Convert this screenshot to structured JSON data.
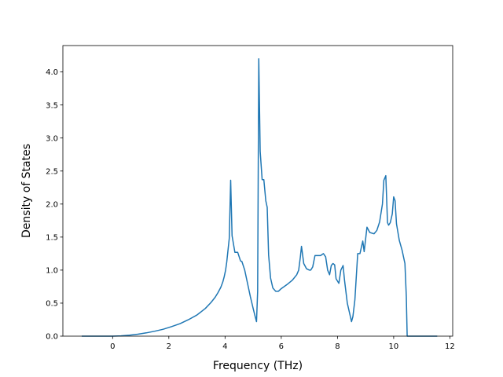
{
  "chart_data": {
    "type": "line",
    "title": "",
    "xlabel": "Frequency (THz)",
    "ylabel": "Density of States",
    "xlim": [
      -1.77,
      12.1
    ],
    "ylim": [
      0.0,
      4.4
    ],
    "xticks": [
      0,
      2,
      4,
      6,
      8,
      10,
      12
    ],
    "xtick_labels": [
      "0",
      "2",
      "4",
      "6",
      "8",
      "10",
      "12"
    ],
    "yticks": [
      0.0,
      0.5,
      1.0,
      1.5,
      2.0,
      2.5,
      3.0,
      3.5,
      4.0
    ],
    "ytick_labels": [
      "0.0",
      "0.5",
      "1.0",
      "1.5",
      "2.0",
      "2.5",
      "3.0",
      "3.5",
      "4.0"
    ],
    "grid": false,
    "legend": "none",
    "line_color": "#1f77b4",
    "series": [
      {
        "x": [
          -1.1,
          -0.5,
          0.0,
          0.3,
          0.6,
          0.9,
          1.2,
          1.5,
          1.8,
          2.1,
          2.4,
          2.7,
          3.0,
          3.3,
          3.5,
          3.65,
          3.75,
          3.85,
          3.92,
          3.97,
          4.02,
          4.06,
          4.1,
          4.15,
          4.2,
          4.25,
          4.35,
          4.45,
          4.55,
          4.6,
          4.7,
          4.8,
          4.9,
          5.0,
          5.07,
          5.12,
          5.16,
          5.2,
          5.25,
          5.32,
          5.38,
          5.45,
          5.5,
          5.55,
          5.62,
          5.7,
          5.8,
          5.9,
          6.0,
          6.2,
          6.4,
          6.55,
          6.62,
          6.68,
          6.72,
          6.8,
          6.9,
          7.0,
          7.05,
          7.12,
          7.2,
          7.3,
          7.4,
          7.5,
          7.58,
          7.65,
          7.72,
          7.78,
          7.84,
          7.9,
          7.95,
          8.05,
          8.12,
          8.2,
          8.25,
          8.35,
          8.5,
          8.55,
          8.62,
          8.72,
          8.8,
          8.9,
          8.95,
          9.05,
          9.15,
          9.3,
          9.4,
          9.5,
          9.6,
          9.65,
          9.72,
          9.78,
          9.82,
          9.88,
          9.95,
          10.0,
          10.05,
          10.1,
          10.2,
          10.3,
          10.4,
          10.45,
          10.48,
          10.52,
          11.0,
          11.55
        ],
        "y": [
          0.0,
          0.0,
          0.0,
          0.005,
          0.015,
          0.03,
          0.05,
          0.075,
          0.105,
          0.145,
          0.19,
          0.25,
          0.32,
          0.42,
          0.51,
          0.59,
          0.66,
          0.74,
          0.82,
          0.9,
          1.0,
          1.12,
          1.28,
          1.48,
          2.36,
          1.52,
          1.27,
          1.27,
          1.14,
          1.13,
          1.0,
          0.8,
          0.6,
          0.42,
          0.3,
          0.22,
          0.68,
          4.2,
          2.8,
          2.37,
          2.37,
          2.05,
          1.95,
          1.23,
          0.88,
          0.73,
          0.68,
          0.68,
          0.72,
          0.78,
          0.85,
          0.93,
          1.0,
          1.2,
          1.36,
          1.1,
          1.02,
          1.0,
          1.0,
          1.05,
          1.22,
          1.22,
          1.22,
          1.25,
          1.2,
          1.0,
          0.93,
          1.07,
          1.1,
          1.08,
          0.87,
          0.8,
          1.0,
          1.07,
          0.85,
          0.5,
          0.22,
          0.3,
          0.55,
          1.25,
          1.25,
          1.44,
          1.28,
          1.65,
          1.57,
          1.55,
          1.6,
          1.73,
          2.0,
          2.36,
          2.43,
          1.72,
          1.68,
          1.72,
          1.85,
          2.11,
          2.05,
          1.7,
          1.45,
          1.3,
          1.1,
          0.6,
          0.0,
          0.0,
          0.0,
          0.0
        ]
      }
    ]
  }
}
